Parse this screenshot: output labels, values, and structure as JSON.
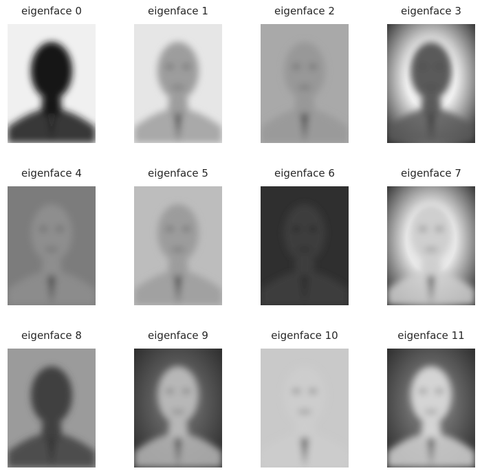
{
  "faces": [
    {
      "title": "eigenface 0",
      "bg": "#f0f0f0",
      "face": "#151515",
      "tone": "dark"
    },
    {
      "title": "eigenface 1",
      "bg": "#e6e6e6",
      "face": "#9d9d9d",
      "tone": "light"
    },
    {
      "title": "eigenface 2",
      "bg": "#a9a9a9",
      "face": "#989898",
      "tone": "mid"
    },
    {
      "title": "eigenface 3",
      "bg": "#f2f2f2",
      "face": "#5a5a5a",
      "tone": "dark-frame"
    },
    {
      "title": "eigenface 4",
      "bg": "#7c7c7c",
      "face": "#8e8e8e",
      "tone": "mid"
    },
    {
      "title": "eigenface 5",
      "bg": "#bdbdbd",
      "face": "#9c9c9c",
      "tone": "light"
    },
    {
      "title": "eigenface 6",
      "bg": "#2f2f2f",
      "face": "#3e3e3e",
      "tone": "dark"
    },
    {
      "title": "eigenface 7",
      "bg": "#e8e8e8",
      "face": "#cfcfcf",
      "tone": "dark-frame"
    },
    {
      "title": "eigenface 8",
      "bg": "#9b9b9b",
      "face": "#3f3f3f",
      "tone": "mid"
    },
    {
      "title": "eigenface 9",
      "bg": "#5e5e5e",
      "face": "#b7b7b7",
      "tone": "dark-frame"
    },
    {
      "title": "eigenface 10",
      "bg": "#c9c9c9",
      "face": "#cdcdcd",
      "tone": "light"
    },
    {
      "title": "eigenface 11",
      "bg": "#6a6a6a",
      "face": "#d4d4d4",
      "tone": "dark-frame"
    }
  ]
}
